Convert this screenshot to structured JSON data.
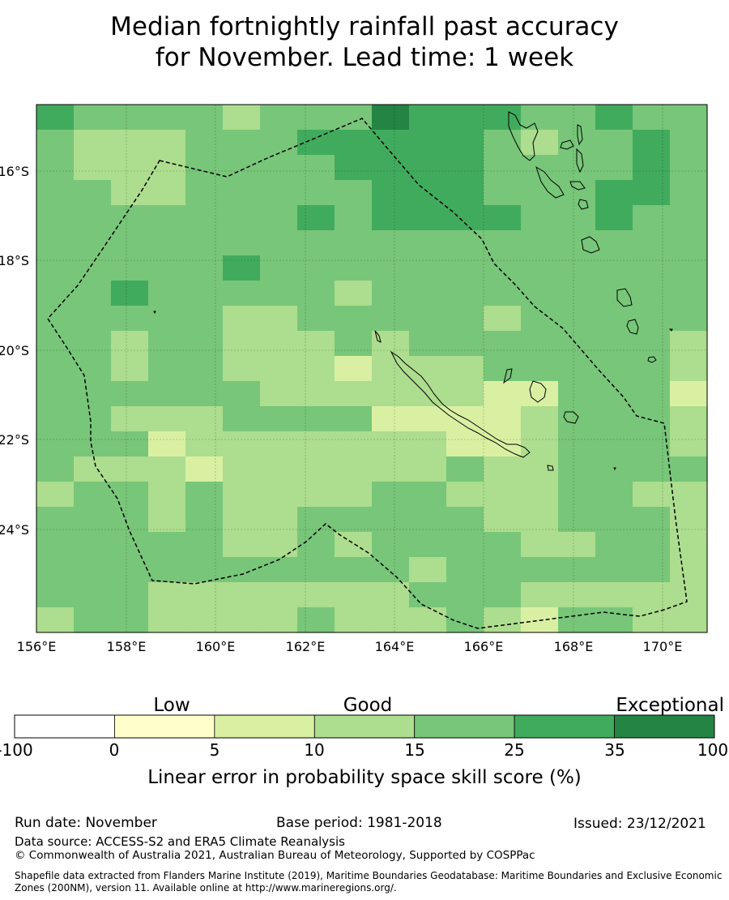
{
  "title_line1": "Median fortnightly rainfall past accuracy",
  "title_line2": "for November. Lead time: 1 week",
  "map": {
    "lon_labels": [
      "156°E",
      "158°E",
      "160°E",
      "162°E",
      "164°E",
      "166°E",
      "168°E",
      "170°E"
    ],
    "lat_labels": [
      "16°S",
      "18°S",
      "20°S",
      "22°S",
      "24°S"
    ],
    "grid": {
      "columns": 18,
      "rows": 21,
      "value_scale": "class index 1-6 mapped to colorbar bins (1: 0-5, 2: 5-10, 3: 10-15, 4: 15-25, 5: 25-35, 6: 35-100)",
      "cells": [
        "544443444655544544",
        "433344455555434454",
        "433344445555444454",
        "443344444555444554",
        "444444454555544544",
        "444444444444444444",
        "444445444444444444",
        "445444443444444444",
        "444443344444344444",
        "443443334344444443",
        "443443332333444443",
        "444444333333224442",
        "443334444222234443",
        "444233333332234443",
        "433323333334334444",
        "344343333443334433",
        "444343344444334443",
        "444443343444433443",
        "444444444434444443",
        "444333333344433333",
        "344333343334324433"
      ]
    }
  },
  "colorbar": {
    "categories": [
      "Low",
      "Good",
      "Exceptional"
    ],
    "ticks": [
      "-100",
      "0",
      "5",
      "10",
      "15",
      "25",
      "35",
      "100"
    ],
    "colors": [
      "#ffffff",
      "#ffffcc",
      "#d9f0a3",
      "#addd8e",
      "#78c679",
      "#41ab5d",
      "#238443"
    ],
    "label": "Linear error in probability space skill score (%)"
  },
  "footer": {
    "run_date": "Run date: November",
    "base_period": "Base period: 1981-2018",
    "issued": "Issued: 23/12/2021",
    "data_source": "Data source: ACCESS-S2 and ERA5 Climate Reanalysis",
    "copyright": "© Commonwealth of Australia 2021, Australian Bureau of Meteorology, Supported by COSPPac",
    "shapefile": "Shapefile data extracted from Flanders Marine Institute (2019), Maritime Boundaries Geodatabase: Maritime Boundaries and Exclusive Economic Zones (200NM), version 11. Available online at http://www.marineregions.org/."
  }
}
